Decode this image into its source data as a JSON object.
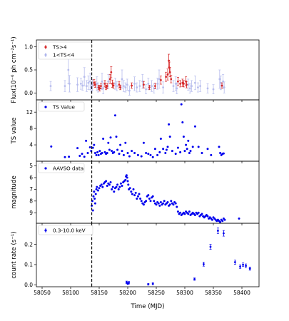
{
  "chart_data": [
    {
      "type": "scatter",
      "panel": "flux",
      "ylabel": "Flux(10⁻⁶ ph cm⁻²s⁻¹)",
      "ylim": [
        -0.15,
        1.15
      ],
      "yticks": [
        0.0,
        0.5,
        1.0
      ],
      "ytick_labels": [
        "0.0",
        "0.5",
        "1.0"
      ],
      "grid": false,
      "legend_position": "top-left",
      "series": [
        {
          "name": "TS>4",
          "color": "#d62728",
          "x": [
            58141,
            58143,
            58149,
            58151,
            58153,
            58160,
            58162,
            58164,
            58169,
            58171,
            58173,
            58175,
            58185,
            58187,
            58207,
            58228,
            58238,
            58248,
            58258,
            58267,
            58270,
            58272,
            58273,
            58274,
            58276,
            58288,
            58292,
            58296,
            58298,
            58302,
            58303,
            58365
          ],
          "y": [
            0.22,
            0.18,
            0.12,
            0.1,
            0.15,
            0.2,
            0.12,
            0.15,
            0.3,
            0.45,
            0.2,
            0.16,
            0.18,
            0.12,
            0.16,
            0.18,
            0.12,
            0.15,
            0.28,
            0.35,
            0.4,
            0.7,
            0.55,
            0.45,
            0.3,
            0.25,
            0.2,
            0.22,
            0.2,
            0.25,
            0.18,
            0.16
          ],
          "err": [
            0.07,
            0.06,
            0.05,
            0.06,
            0.06,
            0.07,
            0.05,
            0.06,
            0.1,
            0.12,
            0.08,
            0.06,
            0.07,
            0.05,
            0.06,
            0.07,
            0.05,
            0.06,
            0.09,
            0.1,
            0.12,
            0.14,
            0.12,
            0.1,
            0.08,
            0.09,
            0.07,
            0.08,
            0.07,
            0.1,
            0.07,
            0.06
          ]
        },
        {
          "name": "1<TS<4",
          "color": "#9ea6e8",
          "x": [
            58065,
            58090,
            58096,
            58098,
            58112,
            58118,
            58121,
            58124,
            58128,
            58131,
            58134,
            58136,
            58138,
            58146,
            58148,
            58155,
            58157,
            58166,
            58178,
            58181,
            58190,
            58193,
            58196,
            58199,
            58203,
            58212,
            58216,
            58221,
            58226,
            58232,
            58236,
            58242,
            58246,
            58252,
            58255,
            58262,
            58280,
            58284,
            58286,
            58306,
            58309,
            58312,
            58318,
            58323,
            58327,
            58340,
            58350,
            58361,
            58363,
            58367,
            58369
          ],
          "y": [
            0.15,
            0.15,
            0.5,
            0.2,
            0.18,
            0.2,
            0.16,
            0.35,
            0.15,
            0.22,
            0.25,
            0.12,
            0.17,
            0.2,
            0.12,
            0.25,
            0.1,
            0.25,
            0.2,
            0.15,
            0.3,
            0.15,
            0.12,
            0.18,
            0.05,
            0.2,
            0.12,
            0.15,
            0.25,
            0.08,
            0.2,
            0.15,
            0.1,
            0.2,
            0.3,
            0.12,
            0.15,
            0.2,
            0.1,
            0.18,
            0.1,
            0.15,
            0.22,
            0.12,
            0.15,
            0.1,
            0.08,
            0.3,
            0.22,
            0.25,
            0.12
          ],
          "err": [
            0.1,
            0.12,
            0.3,
            0.18,
            0.15,
            0.12,
            0.1,
            0.2,
            0.12,
            0.15,
            0.18,
            0.1,
            0.12,
            0.15,
            0.1,
            0.18,
            0.12,
            0.15,
            0.12,
            0.1,
            0.2,
            0.12,
            0.1,
            0.12,
            0.1,
            0.15,
            0.1,
            0.12,
            0.15,
            0.1,
            0.12,
            0.12,
            0.1,
            0.12,
            0.2,
            0.12,
            0.12,
            0.15,
            0.12,
            0.12,
            0.1,
            0.12,
            0.15,
            0.1,
            0.12,
            0.1,
            0.1,
            0.2,
            0.15,
            0.15,
            0.12
          ]
        }
      ]
    },
    {
      "type": "scatter",
      "panel": "ts",
      "ylabel": "TS value",
      "ylim": [
        0,
        15
      ],
      "yticks": [
        4,
        8,
        12
      ],
      "ytick_labels": [
        "4",
        "8",
        "12"
      ],
      "grid": false,
      "legend_position": "top-left",
      "series": [
        {
          "name": "TS Value",
          "color": "#0000ee",
          "x": [
            58066,
            58090,
            58097,
            58112,
            58116,
            58120,
            58124,
            58127,
            58130,
            58134,
            58136,
            58139,
            58141,
            58143,
            58145,
            58147,
            58149,
            58151,
            58153,
            58155,
            58157,
            58160,
            58162,
            58164,
            58166,
            58168,
            58170,
            58172,
            58174,
            58176,
            58178,
            58180,
            58182,
            58185,
            58187,
            58190,
            58193,
            58196,
            58200,
            58203,
            58207,
            58212,
            58218,
            58224,
            58228,
            58232,
            58236,
            58240,
            58244,
            58248,
            58252,
            58256,
            58258,
            58262,
            58266,
            58268,
            58270,
            58272,
            58274,
            58278,
            58284,
            58288,
            58292,
            58294,
            58296,
            58298,
            58300,
            58302,
            58304,
            58306,
            58308,
            58310,
            58314,
            58318,
            58324,
            58330,
            58340,
            58346,
            58360,
            58362,
            58364,
            58366,
            58368
          ],
          "y": [
            3.6,
            1.0,
            1.1,
            3.2,
            1.3,
            1.8,
            1.1,
            5.0,
            2.0,
            3.4,
            2.5,
            3.3,
            4.0,
            2.0,
            1.5,
            2.2,
            1.5,
            2.5,
            1.8,
            2.0,
            5.5,
            2.2,
            1.8,
            2.0,
            4.5,
            2.8,
            5.8,
            2.5,
            2.0,
            2.2,
            11.2,
            6.0,
            2.8,
            1.8,
            4.0,
            2.5,
            1.5,
            4.5,
            2.0,
            1.2,
            2.5,
            2.0,
            1.5,
            1.2,
            4.5,
            2.0,
            1.8,
            1.5,
            1.0,
            3.0,
            1.5,
            2.2,
            5.5,
            3.0,
            2.0,
            2.8,
            3.5,
            9.0,
            6.0,
            2.5,
            1.8,
            3.3,
            2.2,
            13.9,
            9.5,
            6.0,
            2.5,
            4.0,
            3.0,
            5.0,
            2.0,
            2.5,
            3.5,
            8.5,
            3.5,
            2.0,
            3.0,
            1.5,
            3.5,
            2.0,
            1.5,
            1.8,
            1.9
          ]
        }
      ]
    },
    {
      "type": "scatter",
      "panel": "magnitude",
      "ylabel": "magnitude",
      "ylim": [
        9.9,
        4.6
      ],
      "yticks": [
        5,
        6,
        7,
        8,
        9
      ],
      "ytick_labels": [
        "5",
        "6",
        "7",
        "8",
        "9"
      ],
      "grid": false,
      "legend_position": "top-left",
      "series": [
        {
          "name": "AAVSO data",
          "color": "#0000ee",
          "x": [
            58137,
            58138,
            58139,
            58140,
            58141,
            58142,
            58143,
            58144,
            58145,
            58146,
            58148,
            58150,
            58152,
            58154,
            58156,
            58158,
            58160,
            58162,
            58164,
            58166,
            58168,
            58170,
            58172,
            58174,
            58176,
            58178,
            58180,
            58182,
            58184,
            58186,
            58188,
            58190,
            58192,
            58194,
            58196,
            58197,
            58198,
            58199,
            58200,
            58201,
            58202,
            58204,
            58206,
            58208,
            58210,
            58212,
            58214,
            58216,
            58218,
            58220,
            58222,
            58224,
            58226,
            58228,
            58230,
            58232,
            58234,
            58236,
            58238,
            58240,
            58242,
            58244,
            58246,
            58248,
            58250,
            58252,
            58254,
            58256,
            58258,
            58260,
            58262,
            58264,
            58266,
            58268,
            58270,
            58272,
            58274,
            58276,
            58278,
            58280,
            58282,
            58284,
            58286,
            58288,
            58290,
            58292,
            58294,
            58296,
            58298,
            58300,
            58302,
            58304,
            58306,
            58308,
            58310,
            58312,
            58314,
            58316,
            58318,
            58320,
            58322,
            58324,
            58326,
            58328,
            58330,
            58332,
            58334,
            58336,
            58338,
            58340,
            58342,
            58344,
            58346,
            58348,
            58350,
            58352,
            58354,
            58356,
            58358,
            58360,
            58362,
            58364,
            58366,
            58368,
            58370,
            58395
          ],
          "y": [
            8.4,
            8.0,
            8.8,
            7.6,
            7.2,
            7.8,
            8.2,
            7.4,
            7.0,
            6.8,
            7.1,
            6.9,
            6.7,
            6.6,
            6.8,
            6.5,
            6.4,
            6.3,
            6.7,
            6.5,
            6.6,
            6.4,
            7.0,
            6.8,
            7.2,
            6.9,
            6.8,
            6.6,
            7.0,
            6.8,
            6.5,
            6.7,
            6.4,
            6.3,
            6.2,
            5.9,
            5.8,
            6.0,
            6.3,
            6.6,
            7.0,
            6.9,
            7.2,
            7.4,
            7.0,
            7.5,
            7.3,
            7.8,
            7.6,
            7.4,
            7.8,
            8.0,
            8.2,
            8.3,
            8.1,
            8.0,
            7.6,
            7.5,
            7.8,
            8.0,
            7.7,
            7.6,
            8.0,
            8.2,
            8.3,
            8.1,
            8.2,
            8.4,
            8.1,
            8.3,
            8.2,
            8.0,
            8.3,
            8.2,
            8.1,
            8.4,
            8.3,
            8.0,
            8.2,
            8.3,
            8.1,
            8.2,
            8.5,
            8.9,
            9.1,
            9.0,
            9.2,
            9.1,
            9.0,
            9.1,
            8.9,
            9.0,
            9.1,
            8.9,
            9.2,
            9.1,
            9.0,
            9.1,
            9.2,
            9.0,
            9.1,
            9.0,
            9.3,
            9.2,
            9.1,
            9.3,
            9.4,
            9.3,
            9.2,
            9.3,
            9.5,
            9.4,
            9.5,
            9.6,
            9.4,
            9.5,
            9.6,
            9.7,
            9.6,
            9.7,
            9.8,
            9.6,
            9.7,
            9.5,
            9.6,
            9.5
          ]
        }
      ]
    },
    {
      "type": "scatter",
      "panel": "xrt",
      "ylabel": "count rate (s⁻¹)",
      "xlabel": "Time (MJD)",
      "xlim": [
        58040,
        58430
      ],
      "xticks": [
        58050,
        58100,
        58150,
        58200,
        58250,
        58300,
        58350,
        58400
      ],
      "xtick_labels": [
        "58050",
        "58100",
        "58150",
        "58200",
        "58250",
        "58300",
        "58350",
        "58400"
      ],
      "ylim": [
        -0.01,
        0.305
      ],
      "yticks": [
        0.0,
        0.1,
        0.2
      ],
      "ytick_labels": [
        "0.0",
        "0.1",
        "0.2"
      ],
      "grid": false,
      "legend_position": "top-left",
      "series": [
        {
          "name": "0.3-10.0 keV",
          "color": "#0000ee",
          "x": [
            58198,
            58200,
            58202,
            58236,
            58244,
            58317,
            58333,
            58345,
            58358,
            58368,
            58388,
            58397,
            58402,
            58407,
            58414
          ],
          "y": [
            0.012,
            0.006,
            0.01,
            0.002,
            0.005,
            0.028,
            0.102,
            0.188,
            0.268,
            0.255,
            0.112,
            0.09,
            0.099,
            0.094,
            0.08
          ],
          "err": [
            0.006,
            0.005,
            0.006,
            0.004,
            0.005,
            0.006,
            0.01,
            0.012,
            0.014,
            0.014,
            0.01,
            0.009,
            0.009,
            0.009,
            0.008
          ]
        }
      ]
    }
  ],
  "vline": {
    "x": 58137,
    "color": "#000000",
    "style": "dashed"
  }
}
